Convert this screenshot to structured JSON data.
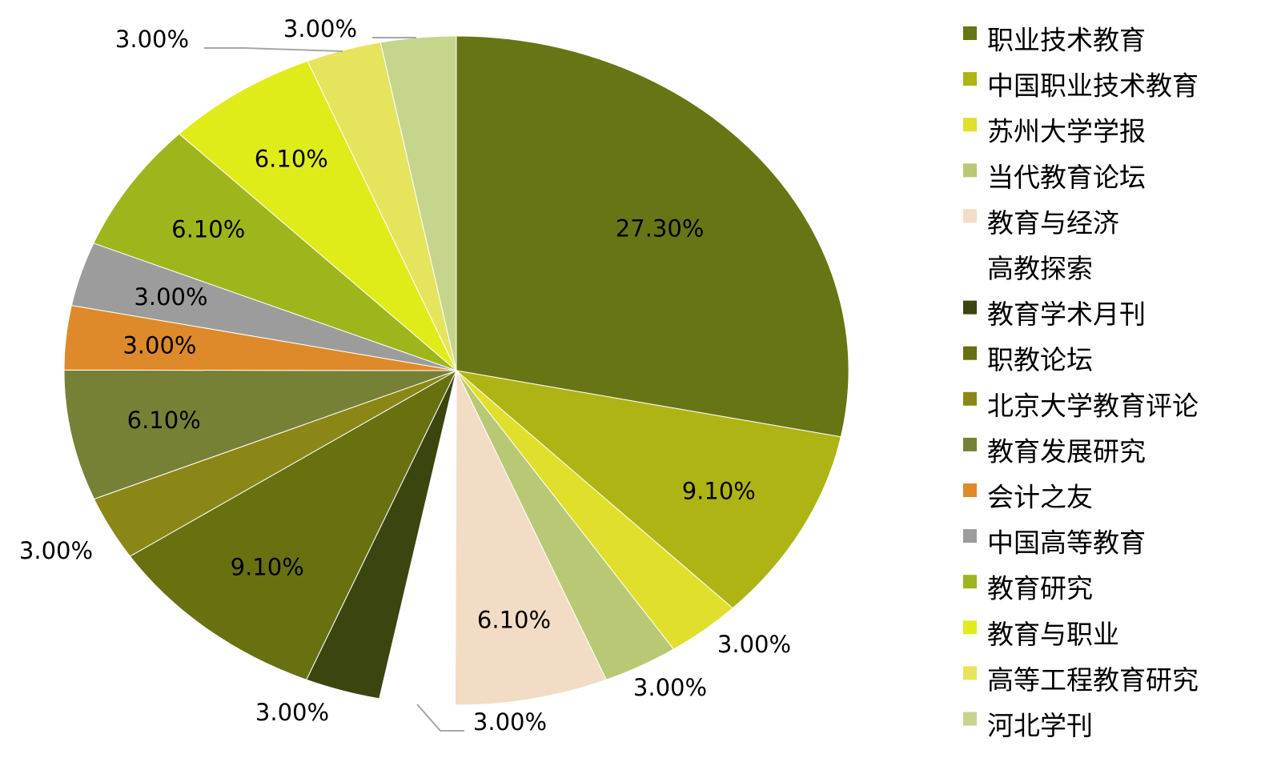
{
  "chart_data": {
    "type": "pie",
    "title": "",
    "legend_position": "right",
    "slices": [
      {
        "label": "职业技术教育",
        "value": 27.3,
        "value_label": "27.30%",
        "color": "#687514"
      },
      {
        "label": "中国职业技术教育",
        "value": 9.1,
        "value_label": "9.10%",
        "color": "#adb414"
      },
      {
        "label": "苏州大学学报",
        "value": 3.0,
        "value_label": "3.00%",
        "color": "#e0df2c"
      },
      {
        "label": "当代教育论坛",
        "value": 3.0,
        "value_label": "3.00%",
        "color": "#b9c874"
      },
      {
        "label": "教育与经济",
        "value": 6.1,
        "value_label": "6.10%",
        "color": "#f3dcc5"
      },
      {
        "label": "高教探索",
        "value": 3.0,
        "value_label": "3.00%",
        "color": "#ffffff"
      },
      {
        "label": "教育学术月刊",
        "value": 3.0,
        "value_label": "3.00%",
        "color": "#3a4510"
      },
      {
        "label": "职教论坛",
        "value": 9.1,
        "value_label": "9.10%",
        "color": "#687010"
      },
      {
        "label": "北京大学教育评论",
        "value": 3.0,
        "value_label": "3.00%",
        "color": "#8a8716"
      },
      {
        "label": "教育发展研究",
        "value": 6.1,
        "value_label": "6.10%",
        "color": "#768136"
      },
      {
        "label": "会计之友",
        "value": 3.0,
        "value_label": "3.00%",
        "color": "#de8a2a"
      },
      {
        "label": "中国高等教育",
        "value": 3.0,
        "value_label": "3.00%",
        "color": "#9c9c9c"
      },
      {
        "label": "教育研究",
        "value": 6.1,
        "value_label": "6.10%",
        "color": "#9fb51c"
      },
      {
        "label": "教育与职业",
        "value": 6.1,
        "value_label": "6.10%",
        "color": "#e0ec1a"
      },
      {
        "label": "高等工程教育研究",
        "value": 3.0,
        "value_label": "3.00%",
        "color": "#e6e45c"
      },
      {
        "label": "河北学刊",
        "value": 3.0,
        "value_label": "3.00%",
        "color": "#c6d58c"
      }
    ]
  }
}
